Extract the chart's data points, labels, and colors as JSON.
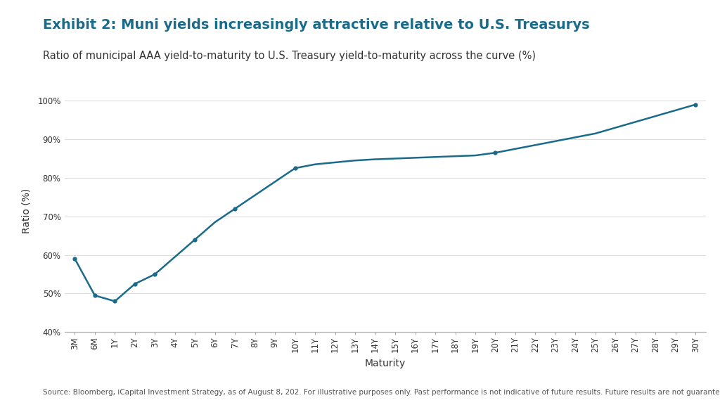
{
  "title": "Exhibit 2: Muni yields increasingly attractive relative to U.S. Treasurys",
  "subtitle": "Ratio of municipal AAA yield-to-maturity to U.S. Treasury yield-to-maturity across the curve (%)",
  "xlabel": "Maturity",
  "ylabel": "Ratio (%)",
  "source": "Source: Bloomberg, iCapital Investment Strategy, as of August 8, 202. For illustrative purposes only. Past performance is not indicative of future results. Future results are not guaranteed.",
  "categories": [
    "3M",
    "6M",
    "1Y",
    "2Y",
    "3Y",
    "4Y",
    "5Y",
    "6Y",
    "7Y",
    "8Y",
    "9Y",
    "10Y",
    "11Y",
    "12Y",
    "13Y",
    "14Y",
    "15Y",
    "16Y",
    "17Y",
    "18Y",
    "19Y",
    "20Y",
    "21Y",
    "22Y",
    "23Y",
    "24Y",
    "25Y",
    "26Y",
    "27Y",
    "28Y",
    "29Y",
    "30Y"
  ],
  "values": [
    59.0,
    49.5,
    48.0,
    52.5,
    55.0,
    59.5,
    64.0,
    68.5,
    72.0,
    75.5,
    79.0,
    82.5,
    83.5,
    84.0,
    84.5,
    84.8,
    85.0,
    85.2,
    85.4,
    85.6,
    85.8,
    86.5,
    87.5,
    88.5,
    89.5,
    90.5,
    91.5,
    93.0,
    94.5,
    96.0,
    97.5,
    99.0
  ],
  "marker_indices": [
    0,
    1,
    2,
    3,
    4,
    6,
    8,
    11,
    21,
    31
  ],
  "line_color": "#1a6b8a",
  "marker": "o",
  "marker_size": 4.5,
  "line_width": 1.8,
  "ylim": [
    40,
    103
  ],
  "yticks": [
    40,
    50,
    60,
    70,
    80,
    90,
    100
  ],
  "ytick_labels": [
    "40%",
    "50%",
    "60%",
    "70%",
    "80%",
    "90%",
    "100%"
  ],
  "title_color": "#1a6b8a",
  "title_fontsize": 14,
  "subtitle_fontsize": 10.5,
  "axis_label_fontsize": 10,
  "tick_fontsize": 8.5,
  "source_fontsize": 7.5,
  "background_color": "#ffffff",
  "plot_bg_color": "#ffffff",
  "grid_color": "#dddddd",
  "spine_color": "#aaaaaa"
}
